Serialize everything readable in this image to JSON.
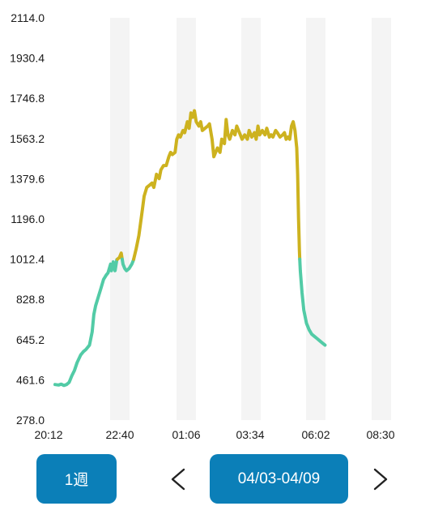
{
  "chart_data": {
    "type": "line",
    "title": "",
    "xlabel": "",
    "ylabel": "",
    "ylim": [
      278.0,
      2114.0
    ],
    "yticks": [
      "2114.0",
      "1930.4",
      "1746.8",
      "1563.2",
      "1379.6",
      "1196.0",
      "1012.4",
      "828.8",
      "645.2",
      "461.6",
      "278.0"
    ],
    "xticks": [
      "20:12",
      "22:40",
      "01:06",
      "03:34",
      "06:02",
      "08:30"
    ],
    "xlim_minutes": [
      0,
      738
    ],
    "threshold": 1012.4,
    "grid": "vertical shaded bands",
    "colors": {
      "low": "#52cba6",
      "high": "#cdb21f",
      "band": "#f4f4f4",
      "button": "#0b7fb8"
    },
    "series": [
      {
        "points": [
          [
            0,
            440
          ],
          [
            8,
            438
          ],
          [
            14,
            442
          ],
          [
            20,
            436
          ],
          [
            26,
            440
          ],
          [
            32,
            450
          ],
          [
            38,
            480
          ],
          [
            44,
            505
          ],
          [
            50,
            540
          ],
          [
            58,
            575
          ],
          [
            64,
            590
          ],
          [
            70,
            600
          ],
          [
            78,
            620
          ],
          [
            84,
            680
          ],
          [
            88,
            760
          ],
          [
            92,
            800
          ],
          [
            98,
            840
          ],
          [
            104,
            880
          ],
          [
            110,
            920
          ],
          [
            116,
            940
          ],
          [
            120,
            950
          ],
          [
            126,
            990
          ],
          [
            128,
            960
          ],
          [
            132,
            1000
          ],
          [
            136,
            960
          ],
          [
            140,
            1010
          ],
          [
            146,
            1020
          ],
          [
            150,
            1040
          ],
          [
            154,
            990
          ],
          [
            158,
            970
          ],
          [
            162,
            960
          ],
          [
            168,
            970
          ],
          [
            174,
            990
          ],
          [
            178,
            1010
          ],
          [
            184,
            1060
          ],
          [
            190,
            1120
          ],
          [
            194,
            1180
          ],
          [
            198,
            1240
          ],
          [
            202,
            1300
          ],
          [
            208,
            1340
          ],
          [
            214,
            1350
          ],
          [
            220,
            1360
          ],
          [
            224,
            1340
          ],
          [
            230,
            1400
          ],
          [
            236,
            1380
          ],
          [
            240,
            1420
          ],
          [
            246,
            1440
          ],
          [
            252,
            1440
          ],
          [
            258,
            1480
          ],
          [
            262,
            1500
          ],
          [
            266,
            1490
          ],
          [
            272,
            1500
          ],
          [
            276,
            1560
          ],
          [
            280,
            1580
          ],
          [
            284,
            1570
          ],
          [
            290,
            1600
          ],
          [
            294,
            1590
          ],
          [
            300,
            1640
          ],
          [
            304,
            1610
          ],
          [
            308,
            1680
          ],
          [
            312,
            1660
          ],
          [
            316,
            1690
          ],
          [
            320,
            1640
          ],
          [
            326,
            1620
          ],
          [
            330,
            1640
          ],
          [
            334,
            1600
          ],
          [
            340,
            1610
          ],
          [
            346,
            1620
          ],
          [
            350,
            1630
          ],
          [
            356,
            1560
          ],
          [
            360,
            1480
          ],
          [
            364,
            1500
          ],
          [
            368,
            1520
          ],
          [
            374,
            1500
          ],
          [
            378,
            1560
          ],
          [
            384,
            1540
          ],
          [
            388,
            1650
          ],
          [
            392,
            1580
          ],
          [
            396,
            1560
          ],
          [
            402,
            1600
          ],
          [
            408,
            1580
          ],
          [
            412,
            1620
          ],
          [
            416,
            1600
          ],
          [
            420,
            1580
          ],
          [
            424,
            1560
          ],
          [
            430,
            1580
          ],
          [
            436,
            1560
          ],
          [
            440,
            1600
          ],
          [
            446,
            1570
          ],
          [
            452,
            1590
          ],
          [
            456,
            1560
          ],
          [
            460,
            1620
          ],
          [
            464,
            1580
          ],
          [
            470,
            1600
          ],
          [
            476,
            1580
          ],
          [
            480,
            1610
          ],
          [
            486,
            1570
          ],
          [
            490,
            1580
          ],
          [
            494,
            1570
          ],
          [
            500,
            1600
          ],
          [
            504,
            1590
          ],
          [
            510,
            1570
          ],
          [
            516,
            1580
          ],
          [
            520,
            1590
          ],
          [
            524,
            1560
          ],
          [
            528,
            1570
          ],
          [
            532,
            1560
          ],
          [
            536,
            1620
          ],
          [
            540,
            1640
          ],
          [
            544,
            1600
          ],
          [
            548,
            1520
          ],
          [
            550,
            1400
          ],
          [
            552,
            1200
          ],
          [
            554,
            1050
          ],
          [
            556,
            960
          ],
          [
            560,
            860
          ],
          [
            564,
            780
          ],
          [
            570,
            720
          ],
          [
            576,
            690
          ],
          [
            582,
            670
          ],
          [
            588,
            660
          ],
          [
            594,
            650
          ],
          [
            600,
            640
          ],
          [
            606,
            630
          ],
          [
            612,
            620
          ]
        ]
      }
    ]
  },
  "controls": {
    "period_label": "1週",
    "range_label": "04/03-04/09",
    "prev_icon": "chevron-left-icon",
    "next_icon": "chevron-right-icon"
  }
}
